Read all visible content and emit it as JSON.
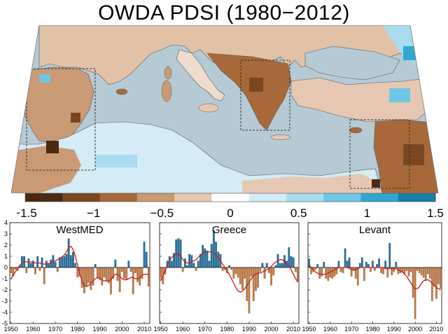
{
  "title": "OWDA PDSI (1980−2012)",
  "colorbar": {
    "ticks": [
      "−1.5",
      "−1",
      "−0.5",
      "0",
      "0.5",
      "1",
      "1.5"
    ],
    "tick_values": [
      -1.5,
      -1,
      -0.5,
      0,
      0.5,
      1,
      1.5
    ],
    "range": [
      -1.5,
      1.5
    ],
    "colors": [
      "#4a2a14",
      "#7a4720",
      "#a8693a",
      "#c99a74",
      "#e6c8b2",
      "#ffffff",
      "#d3ecf5",
      "#a9dcef",
      "#70c6e6",
      "#2fa8d1",
      "#1c7fa8"
    ]
  },
  "colors": {
    "sea": "#b5cad4",
    "positive_bar": "#2b6f96",
    "negative_bar": "#b8794a",
    "smooth_line": "#d01818",
    "region_box": "#333333"
  },
  "chart_data": [
    {
      "type": "bar",
      "title": "WestMED",
      "x": [
        1950,
        1951,
        1952,
        1953,
        1954,
        1955,
        1956,
        1957,
        1958,
        1959,
        1960,
        1961,
        1962,
        1963,
        1964,
        1965,
        1966,
        1967,
        1968,
        1969,
        1970,
        1971,
        1972,
        1973,
        1974,
        1975,
        1976,
        1977,
        1978,
        1979,
        1980,
        1981,
        1982,
        1983,
        1984,
        1985,
        1986,
        1987,
        1988,
        1989,
        1990,
        1991,
        1992,
        1993,
        1994,
        1995,
        1996,
        1997,
        1998,
        1999,
        2000,
        2001,
        2002,
        2003,
        2004,
        2005,
        2006,
        2007,
        2008,
        2009,
        2010,
        2011,
        2012
      ],
      "values": [
        -0.5,
        -0.8,
        -0.2,
        -0.3,
        0.2,
        1.0,
        1.0,
        -0.5,
        0.8,
        0.4,
        0.6,
        -0.6,
        1.0,
        -0.3,
        0.9,
        -1.5,
        0.6,
        0.3,
        0.7,
        1.1,
        0.5,
        -0.4,
        0.9,
        0.9,
        1.0,
        1.2,
        2.6,
        1.1,
        1.4,
        0.4,
        -0.9,
        -0.8,
        -1.8,
        -2.3,
        -1.7,
        -1.4,
        -2.0,
        -1.6,
        0.3,
        -0.9,
        -1.1,
        -1.6,
        -0.9,
        -1.2,
        -1.4,
        -2.4,
        -1.0,
        0.7,
        -1.2,
        -2.2,
        -0.4,
        -1.0,
        -1.1,
        0.6,
        -0.4,
        -2.4,
        -0.5,
        -1.3,
        -1.6,
        -1.0,
        2.3,
        1.4,
        -1.7
      ],
      "smooth": [
        -1.0,
        -0.7,
        -0.4,
        -0.1,
        0.2,
        0.4,
        0.5,
        0.5,
        0.5,
        0.5,
        0.45,
        0.4,
        0.4,
        0.4,
        0.35,
        0.3,
        0.3,
        0.35,
        0.4,
        0.5,
        0.6,
        0.7,
        0.8,
        0.95,
        1.1,
        1.4,
        1.8,
        1.9,
        1.6,
        1.0,
        0.2,
        -0.6,
        -1.2,
        -1.6,
        -1.7,
        -1.6,
        -1.4,
        -1.2,
        -1.0,
        -0.9,
        -1.0,
        -1.1,
        -1.2,
        -1.2,
        -1.2,
        -1.1,
        -0.8,
        -0.6,
        -0.6,
        -0.8,
        -1.0,
        -1.1,
        -1.1,
        -1.0,
        -0.9,
        -0.9,
        -1.0,
        -1.0,
        -0.9,
        -0.7,
        -0.6,
        -0.6,
        -0.6
      ],
      "xlim": [
        1949.5,
        2012.5
      ],
      "ylim": [
        -5,
        4
      ],
      "xticks": [
        1950,
        1960,
        1970,
        1980,
        1990,
        2000,
        2010
      ],
      "yticks": [
        4,
        3,
        2,
        1,
        0,
        -1,
        -2,
        -3,
        -4,
        -5
      ]
    },
    {
      "type": "bar",
      "title": "Greece",
      "x": [
        1950,
        1951,
        1952,
        1953,
        1954,
        1955,
        1956,
        1957,
        1958,
        1959,
        1960,
        1961,
        1962,
        1963,
        1964,
        1965,
        1966,
        1967,
        1968,
        1969,
        1970,
        1971,
        1972,
        1973,
        1974,
        1975,
        1976,
        1977,
        1978,
        1979,
        1980,
        1981,
        1982,
        1983,
        1984,
        1985,
        1986,
        1987,
        1988,
        1989,
        1990,
        1991,
        1992,
        1993,
        1994,
        1995,
        1996,
        1997,
        1998,
        1999,
        2000,
        2001,
        2002,
        2003,
        2004,
        2005,
        2006,
        2007,
        2008,
        2009,
        2010,
        2011,
        2012
      ],
      "values": [
        -0.9,
        -1.5,
        -0.6,
        0.6,
        1.0,
        0.6,
        1.3,
        2.5,
        2.6,
        2.5,
        -0.4,
        0.8,
        0.2,
        1.2,
        1.1,
        0.4,
        -0.3,
        0.6,
        1.2,
        2.0,
        1.7,
        1.5,
        0.6,
        2.1,
        3.3,
        2.3,
        1.4,
        1.2,
        -0.3,
        -0.2,
        -0.5,
        0.2,
        -0.2,
        -1.0,
        -0.6,
        -0.9,
        -1.5,
        -2.0,
        -1.0,
        -3.0,
        -4.1,
        -0.8,
        -3.0,
        -2.1,
        -1.8,
        -0.4,
        0.4,
        -1.0,
        0.4,
        -0.5,
        -1.6,
        -0.7,
        0.2,
        1.2,
        0.4,
        0.4,
        1.1,
        0.6,
        1.8,
        1.0,
        0.9,
        -0.4,
        -1.3
      ],
      "smooth": [
        -1.2,
        -0.8,
        -0.3,
        0.2,
        0.6,
        0.9,
        1.1,
        1.2,
        1.2,
        1.0,
        0.7,
        0.5,
        0.4,
        0.4,
        0.5,
        0.6,
        0.7,
        0.9,
        1.1,
        1.3,
        1.4,
        1.4,
        1.4,
        1.4,
        1.3,
        1.1,
        0.9,
        0.6,
        0.3,
        0.0,
        -0.3,
        -0.6,
        -1.0,
        -1.4,
        -1.8,
        -2.1,
        -2.2,
        -2.1,
        -1.9,
        -1.6,
        -1.3,
        -1.0,
        -0.7,
        -0.6,
        -0.5,
        -0.5,
        -0.4,
        -0.3,
        -0.2,
        -0.1,
        0.1,
        0.3,
        0.5,
        0.6,
        0.7,
        0.7,
        0.5,
        0.3,
        0.1,
        -0.2,
        -0.6,
        -1.0,
        -1.3
      ],
      "xlim": [
        1949.5,
        2012.5
      ],
      "ylim": [
        -5,
        4
      ],
      "xticks": [
        1950,
        1960,
        1970,
        1980,
        1990,
        2000,
        2010
      ],
      "yticks": [
        4,
        3,
        2,
        1,
        0,
        -1,
        -2,
        -3,
        -4,
        -5
      ]
    },
    {
      "type": "bar",
      "title": "Levant",
      "x": [
        1950,
        1951,
        1952,
        1953,
        1954,
        1955,
        1956,
        1957,
        1958,
        1959,
        1960,
        1961,
        1962,
        1963,
        1964,
        1965,
        1966,
        1967,
        1968,
        1969,
        1970,
        1971,
        1972,
        1973,
        1974,
        1975,
        1976,
        1977,
        1978,
        1979,
        1980,
        1981,
        1982,
        1983,
        1984,
        1985,
        1986,
        1987,
        1988,
        1989,
        1990,
        1991,
        1992,
        1993,
        1994,
        1995,
        1996,
        1997,
        1998,
        1999,
        2000,
        2001,
        2002,
        2003,
        2004,
        2005,
        2006,
        2007,
        2008,
        2009,
        2010,
        2011,
        2012
      ],
      "values": [
        0.8,
        -0.6,
        -0.4,
        -0.2,
        0.3,
        -1.0,
        -0.8,
        0.5,
        -1.0,
        -1.2,
        -0.9,
        -1.0,
        -0.8,
        -0.6,
        0.6,
        -0.4,
        -0.5,
        1.7,
        0.6,
        0.9,
        -0.8,
        -0.3,
        -1.0,
        -1.6,
        0.4,
        0.9,
        -1.2,
        0.5,
        0.3,
        -0.4,
        0.6,
        -0.3,
        0.3,
        0.8,
        -0.5,
        -0.6,
        0.6,
        -0.9,
        2.2,
        -0.7,
        -0.4,
        0.5,
        -0.6,
        -0.5,
        -0.4,
        -0.6,
        -0.3,
        -0.8,
        -0.4,
        -2.7,
        -4.6,
        -0.3,
        -0.5,
        -0.7,
        -0.9,
        -1.2,
        -0.6,
        -1.0,
        -3.0,
        -1.7,
        -2.8,
        -1.5,
        -1.9
      ],
      "smooth": [
        0.2,
        0.0,
        -0.2,
        -0.4,
        -0.5,
        -0.6,
        -0.6,
        -0.6,
        -0.6,
        -0.5,
        -0.4,
        -0.3,
        -0.2,
        -0.1,
        0.0,
        0.0,
        0.0,
        0.0,
        0.0,
        -0.1,
        -0.2,
        -0.2,
        -0.2,
        -0.1,
        0.0,
        0.0,
        0.0,
        0.0,
        0.0,
        0.0,
        0.0,
        0.0,
        0.0,
        0.0,
        0.0,
        0.0,
        -0.1,
        -0.1,
        -0.1,
        -0.1,
        -0.1,
        -0.1,
        -0.2,
        -0.3,
        -0.4,
        -0.6,
        -0.8,
        -1.1,
        -1.4,
        -1.7,
        -1.9,
        -1.9,
        -1.7,
        -1.4,
        -1.2,
        -1.1,
        -1.1,
        -1.2,
        -1.4,
        -1.6,
        -1.8,
        -1.9,
        -2.0
      ],
      "xlim": [
        1949.5,
        2012.5
      ],
      "ylim": [
        -5,
        4
      ],
      "xticks": [
        1950,
        1960,
        1970,
        1980,
        1990,
        2000,
        2010
      ],
      "yticks": [
        4,
        3,
        2,
        1,
        0,
        -1,
        -2,
        -3,
        -4,
        -5
      ]
    }
  ]
}
